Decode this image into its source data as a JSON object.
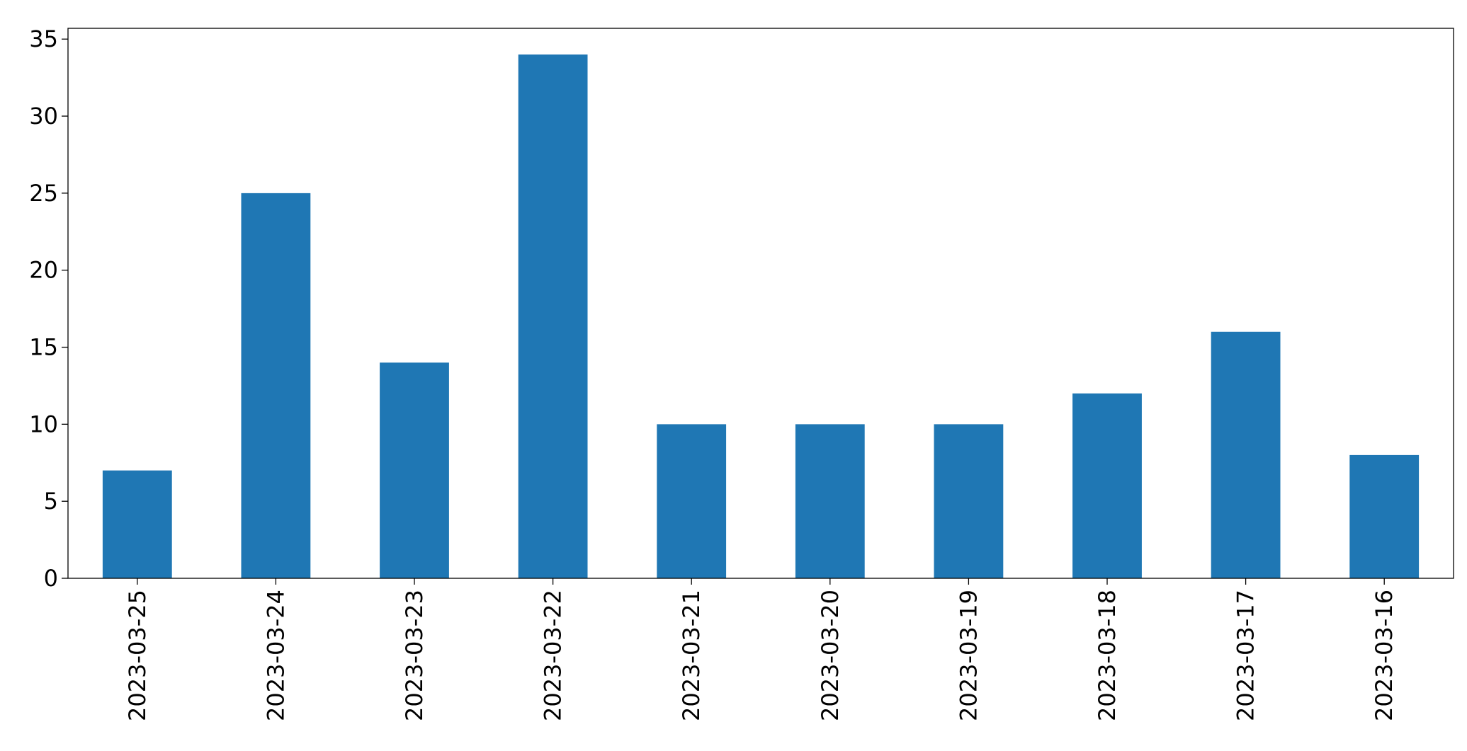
{
  "chart_data": {
    "type": "bar",
    "categories": [
      "2023-03-25",
      "2023-03-24",
      "2023-03-23",
      "2023-03-22",
      "2023-03-21",
      "2023-03-20",
      "2023-03-19",
      "2023-03-18",
      "2023-03-17",
      "2023-03-16"
    ],
    "values": [
      7,
      25,
      14,
      34,
      10,
      10,
      10,
      12,
      16,
      8
    ],
    "color": "#1f77b4",
    "ylim": [
      0,
      35.7
    ],
    "yticks": [
      0,
      5,
      10,
      15,
      20,
      25,
      30,
      35
    ],
    "grid": false
  }
}
